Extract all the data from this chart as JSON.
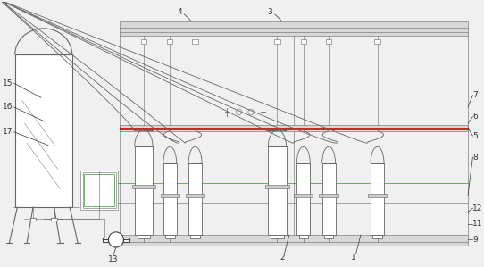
{
  "bg_color": "#f0f0f0",
  "line_color": "#666666",
  "dark_line": "#444444",
  "green_line": "#007700",
  "red_line": "#cc0000",
  "label_color": "#333333",
  "label_fs": 6.5,
  "lw_main": 0.8,
  "lw_med": 0.6,
  "lw_thin": 0.4,
  "fig_width": 5.42,
  "fig_height": 2.99,
  "xlim": [
    0,
    10.0
  ],
  "ylim": [
    0,
    5.5
  ]
}
